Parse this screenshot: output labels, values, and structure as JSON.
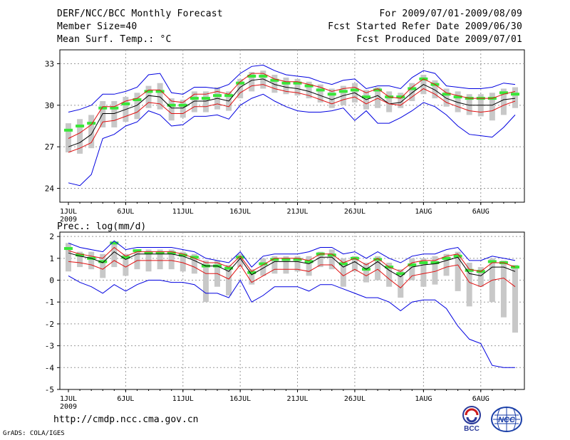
{
  "header": {
    "title": "DERF/NCC/BCC Monthly Forecast",
    "members": "Member Size=40",
    "variable": "Mean Surf. Temp.: °C",
    "for_period": "For 2009/07/01-2009/08/09",
    "start_ref": "Fcst Started Refer Date 2009/06/30",
    "produced": "Fcst Produced Date 2009/07/01"
  },
  "footer": {
    "url": "http://cmdp.ncc.cma.gov.cn",
    "credit": "GrADS: COLA/IGES",
    "logo_bcc": "BCC",
    "logo_ncc": "NCC"
  },
  "colors": {
    "box": "#c8c8c8",
    "median": "#39e639",
    "mean": "#000000",
    "std": "#e01010",
    "range": "#0000e0",
    "grid": "#999999"
  },
  "chart_data": [
    {
      "type": "line",
      "title": "Mean Surf. Temp.: °C",
      "x_labels": [
        "1JUL",
        "6JUL",
        "11JUL",
        "16JUL",
        "21JUL",
        "26JUL",
        "1AUG",
        "6AUG"
      ],
      "x_label_days": [
        1,
        6,
        11,
        16,
        21,
        26,
        32,
        37
      ],
      "x_sub_label": "2009",
      "ylim": [
        23,
        34
      ],
      "yticks": [
        24,
        27,
        30,
        33
      ],
      "grid": true,
      "days": [
        1,
        2,
        3,
        4,
        5,
        6,
        7,
        8,
        9,
        10,
        11,
        12,
        13,
        14,
        15,
        16,
        17,
        18,
        19,
        20,
        21,
        22,
        23,
        24,
        25,
        26,
        27,
        28,
        29,
        30,
        31,
        32,
        33,
        34,
        35,
        36,
        37,
        38,
        39,
        40
      ],
      "series": [
        {
          "name": "ensemble max",
          "values": [
            29.5,
            29.7,
            30.0,
            30.8,
            30.8,
            31.0,
            31.3,
            32.2,
            32.3,
            30.9,
            30.8,
            31.3,
            31.3,
            31.2,
            31.5,
            32.3,
            32.8,
            32.9,
            32.5,
            32.2,
            32.1,
            32.0,
            31.7,
            31.5,
            31.8,
            31.9,
            31.2,
            31.4,
            31.4,
            31.2,
            32.0,
            32.5,
            32.3,
            31.4,
            31.3,
            31.2,
            31.2,
            31.3,
            31.6,
            31.5
          ]
        },
        {
          "name": "mean + std",
          "values": [
            27.6,
            28.0,
            28.6,
            29.9,
            29.9,
            30.3,
            30.5,
            31.1,
            31.1,
            30.3,
            30.2,
            30.8,
            30.8,
            31.0,
            30.8,
            31.7,
            32.3,
            32.3,
            31.9,
            31.7,
            31.7,
            31.5,
            31.3,
            31.0,
            31.2,
            31.3,
            30.9,
            31.2,
            30.6,
            30.5,
            31.3,
            31.9,
            31.5,
            30.9,
            30.7,
            30.5,
            30.5,
            30.5,
            30.8,
            31.0
          ]
        },
        {
          "name": "ensemble mean",
          "values": [
            27.0,
            27.3,
            27.9,
            29.4,
            29.4,
            29.7,
            30.0,
            30.7,
            30.6,
            29.8,
            29.8,
            30.3,
            30.3,
            30.5,
            30.3,
            31.3,
            31.8,
            31.9,
            31.5,
            31.3,
            31.2,
            31.0,
            30.7,
            30.4,
            30.7,
            30.9,
            30.4,
            30.7,
            30.1,
            30.2,
            30.9,
            31.5,
            31.1,
            30.5,
            30.2,
            30.0,
            30.0,
            30.0,
            30.4,
            30.5
          ]
        },
        {
          "name": "mean - std",
          "values": [
            26.6,
            26.9,
            27.3,
            28.8,
            28.9,
            29.2,
            29.5,
            30.2,
            30.1,
            29.4,
            29.4,
            29.9,
            29.9,
            30.1,
            29.9,
            30.9,
            31.4,
            31.5,
            31.2,
            31.0,
            30.9,
            30.7,
            30.4,
            30.1,
            30.4,
            30.6,
            30.1,
            30.5,
            30.1,
            30.0,
            30.6,
            31.2,
            30.8,
            30.2,
            29.9,
            29.6,
            29.5,
            29.6,
            30.0,
            30.3
          ]
        },
        {
          "name": "ensemble min",
          "values": [
            24.4,
            24.2,
            25.0,
            27.6,
            27.9,
            28.5,
            28.8,
            29.6,
            29.3,
            28.5,
            28.6,
            29.2,
            29.2,
            29.3,
            29.0,
            30.0,
            30.5,
            30.8,
            30.3,
            29.9,
            29.6,
            29.5,
            29.5,
            29.6,
            29.8,
            28.9,
            29.6,
            28.7,
            28.7,
            29.1,
            29.6,
            30.2,
            29.9,
            29.3,
            28.5,
            27.9,
            27.8,
            27.7,
            28.4,
            29.3
          ]
        }
      ],
      "box_low": [
        26.6,
        26.5,
        26.9,
        28.4,
        28.4,
        28.8,
        29.0,
        29.8,
        29.7,
        28.9,
        29.1,
        29.5,
        29.5,
        29.7,
        29.6,
        30.5,
        31.0,
        31.2,
        30.9,
        30.8,
        30.7,
        30.5,
        30.2,
        29.8,
        30.0,
        30.2,
        29.7,
        29.8,
        29.5,
        29.8,
        30.3,
        30.8,
        30.5,
        29.9,
        29.5,
        29.3,
        29.2,
        28.9,
        29.3,
        29.8
      ],
      "box_high": [
        28.7,
        29.0,
        29.3,
        30.3,
        30.3,
        30.6,
        30.9,
        31.4,
        31.6,
        30.5,
        30.4,
        31.0,
        31.0,
        31.3,
        31.0,
        31.9,
        32.4,
        32.5,
        32.2,
        32.0,
        31.9,
        31.7,
        31.5,
        31.2,
        31.4,
        31.6,
        31.1,
        31.3,
        31.0,
        30.9,
        31.6,
        32.2,
        31.8,
        31.2,
        31.0,
        30.8,
        30.8,
        30.9,
        31.2,
        31.3
      ],
      "median": [
        28.2,
        28.5,
        28.7,
        29.8,
        29.8,
        30.1,
        30.4,
        31.0,
        31.0,
        30.0,
        30.0,
        30.5,
        30.5,
        30.7,
        30.7,
        31.6,
        32.1,
        32.1,
        31.8,
        31.6,
        31.6,
        31.4,
        31.1,
        30.8,
        31.0,
        31.1,
        30.6,
        31.1,
        30.6,
        30.6,
        31.2,
        31.9,
        31.5,
        30.8,
        30.6,
        30.5,
        30.5,
        30.5,
        30.9,
        30.8
      ]
    },
    {
      "type": "line",
      "title": "Prec.: log(mm/d)",
      "x_labels": [
        "1JUL",
        "6JUL",
        "11JUL",
        "16JUL",
        "21JUL",
        "26JUL",
        "1AUG",
        "6AUG"
      ],
      "x_label_days": [
        1,
        6,
        11,
        16,
        21,
        26,
        32,
        37
      ],
      "x_sub_label": "2009",
      "ylim": [
        -5,
        2.2
      ],
      "yticks": [
        -5,
        -4,
        -3,
        -2,
        -1,
        0,
        1,
        2
      ],
      "grid": true,
      "days": [
        1,
        2,
        3,
        4,
        5,
        6,
        7,
        8,
        9,
        10,
        11,
        12,
        13,
        14,
        15,
        16,
        17,
        18,
        19,
        20,
        21,
        22,
        23,
        24,
        25,
        26,
        27,
        28,
        29,
        30,
        31,
        32,
        33,
        34,
        35,
        36,
        37,
        38,
        39,
        40
      ],
      "series": [
        {
          "name": "ensemble max",
          "values": [
            1.7,
            1.5,
            1.4,
            1.3,
            1.8,
            1.4,
            1.5,
            1.5,
            1.5,
            1.5,
            1.4,
            1.3,
            1.0,
            0.9,
            0.8,
            1.3,
            0.6,
            1.1,
            1.2,
            1.2,
            1.2,
            1.3,
            1.5,
            1.5,
            1.2,
            1.3,
            1.0,
            1.3,
            1.0,
            0.8,
            1.1,
            1.2,
            1.2,
            1.4,
            1.5,
            0.9,
            0.9,
            1.1,
            1.0,
            0.9
          ]
        },
        {
          "name": "mean + std",
          "values": [
            1.35,
            1.2,
            1.1,
            1.0,
            1.5,
            1.1,
            1.3,
            1.3,
            1.3,
            1.3,
            1.2,
            1.0,
            0.8,
            0.8,
            0.6,
            1.1,
            0.4,
            0.7,
            1.0,
            1.0,
            1.0,
            0.9,
            1.2,
            1.2,
            0.8,
            1.0,
            0.7,
            1.0,
            0.6,
            0.4,
            0.8,
            0.9,
            0.9,
            1.1,
            1.2,
            0.5,
            0.4,
            0.8,
            0.8,
            0.6
          ]
        },
        {
          "name": "ensemble mean",
          "values": [
            1.25,
            1.1,
            1.0,
            0.8,
            1.3,
            0.95,
            1.2,
            1.2,
            1.2,
            1.2,
            1.1,
            0.9,
            0.65,
            0.65,
            0.4,
            1.0,
            0.25,
            0.55,
            0.85,
            0.85,
            0.85,
            0.75,
            1.05,
            1.05,
            0.6,
            0.85,
            0.5,
            0.85,
            0.45,
            0.15,
            0.6,
            0.7,
            0.75,
            0.9,
            1.05,
            0.3,
            0.2,
            0.6,
            0.6,
            0.4
          ]
        },
        {
          "name": "mean - std",
          "values": [
            0.85,
            0.8,
            0.7,
            0.5,
            0.9,
            0.6,
            0.9,
            0.9,
            0.9,
            0.9,
            0.8,
            0.6,
            0.3,
            0.3,
            0.05,
            0.7,
            -0.1,
            0.2,
            0.5,
            0.5,
            0.5,
            0.4,
            0.7,
            0.7,
            0.2,
            0.5,
            0.2,
            0.5,
            0.05,
            -0.35,
            0.2,
            0.3,
            0.4,
            0.6,
            0.7,
            -0.1,
            -0.3,
            0.0,
            0.1,
            -0.3
          ]
        },
        {
          "name": "ensemble min",
          "values": [
            0.2,
            -0.1,
            -0.3,
            -0.6,
            -0.2,
            -0.5,
            -0.2,
            0.0,
            0.0,
            -0.1,
            -0.1,
            -0.2,
            -0.6,
            -0.6,
            -0.8,
            0.0,
            -1.0,
            -0.7,
            -0.3,
            -0.3,
            -0.3,
            -0.5,
            -0.2,
            -0.2,
            -0.4,
            -0.6,
            -0.8,
            -0.8,
            -1.0,
            -1.4,
            -1.0,
            -0.9,
            -0.9,
            -1.3,
            -2.1,
            -2.7,
            -2.9,
            -3.9,
            -4.0,
            -4.0
          ]
        }
      ],
      "box_low": [
        0.4,
        0.6,
        0.5,
        0.1,
        0.6,
        0.2,
        0.5,
        0.4,
        0.5,
        0.5,
        0.4,
        0.3,
        -1.0,
        -0.3,
        -0.7,
        0.6,
        -0.2,
        0.2,
        0.3,
        0.3,
        0.4,
        0.2,
        0.6,
        0.5,
        -0.3,
        0.4,
        -0.1,
        0.0,
        -0.3,
        -0.8,
        0.0,
        -0.3,
        -0.2,
        0.2,
        -0.5,
        -1.2,
        -0.3,
        -1.0,
        -1.7,
        -2.4
      ],
      "box_high": [
        1.7,
        1.3,
        1.3,
        1.2,
        1.7,
        1.2,
        1.4,
        1.4,
        1.4,
        1.4,
        1.3,
        1.2,
        0.9,
        0.9,
        0.7,
        1.2,
        0.5,
        1.0,
        1.1,
        1.1,
        1.1,
        1.1,
        1.3,
        1.4,
        1.0,
        1.1,
        0.8,
        1.1,
        0.8,
        0.5,
        1.0,
        1.0,
        1.1,
        1.2,
        1.3,
        0.8,
        0.6,
        1.0,
        0.9,
        0.7
      ],
      "median": [
        1.45,
        1.15,
        1.0,
        0.85,
        1.7,
        1.05,
        1.35,
        1.25,
        1.25,
        1.25,
        1.15,
        1.05,
        0.65,
        0.65,
        0.55,
        1.05,
        0.35,
        0.75,
        0.95,
        0.95,
        0.95,
        0.85,
        1.2,
        1.15,
        0.75,
        1.0,
        0.5,
        0.95,
        0.6,
        0.3,
        0.7,
        0.8,
        0.8,
        1.0,
        1.1,
        0.45,
        0.4,
        0.85,
        0.8,
        0.6
      ]
    }
  ]
}
